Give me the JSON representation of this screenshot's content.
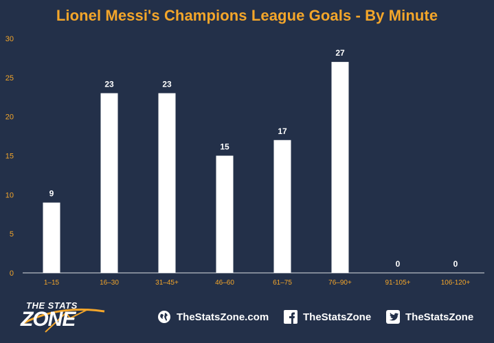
{
  "title": "Lionel Messi's Champions League Goals - By Minute",
  "colors": {
    "background": "#233049",
    "accent": "#f4a62a",
    "bar": "#ffffff",
    "text": "#ffffff"
  },
  "chart_data": {
    "type": "bar",
    "title": "Lionel Messi's Champions League Goals - By Minute",
    "xlabel": "",
    "ylabel": "",
    "categories": [
      "1–15",
      "16–30",
      "31–45+",
      "46–60",
      "61–75",
      "76–90+",
      "91-105+",
      "106-120+"
    ],
    "values": [
      9,
      23,
      23,
      15,
      17,
      27,
      0,
      0
    ],
    "ylim": [
      0,
      30
    ],
    "yticks": [
      0,
      5,
      10,
      15,
      20,
      25,
      30
    ],
    "grid": false,
    "data_labels": true
  },
  "footer": {
    "logo_top": "THE STATS",
    "logo_main": "ZONE",
    "website": "TheStatsZone.com",
    "facebook": "TheStatsZone",
    "twitter": "TheStatsZone",
    "icons": [
      "globe-icon",
      "facebook-icon",
      "twitter-icon"
    ]
  }
}
